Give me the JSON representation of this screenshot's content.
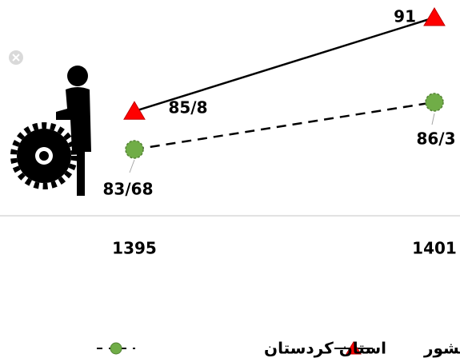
{
  "chart_data": {
    "type": "line",
    "categories": [
      "1395",
      "1401"
    ],
    "series": [
      {
        "name": "کشور",
        "color": "#ff0000",
        "marker": "triangle",
        "linestyle": "solid",
        "values": [
          85.8,
          91
        ],
        "value_labels": [
          "85/8",
          "91"
        ]
      },
      {
        "name": "استان کردستان",
        "color": "#70ad47",
        "marker": "circle",
        "linestyle": "dashed",
        "values": [
          83.68,
          86.3
        ],
        "value_labels": [
          "83/68",
          "86/3"
        ]
      }
    ]
  }
}
